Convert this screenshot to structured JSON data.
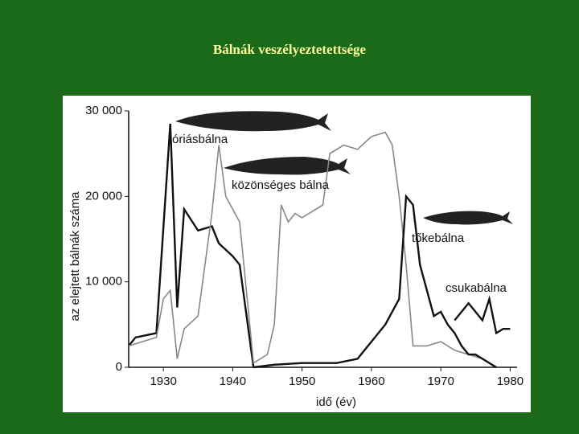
{
  "chart_data": {
    "type": "line",
    "title": "Bálnák veszélyeztetettsége",
    "xlabel": "idő (év)",
    "ylabel": "az elejtett bálnák száma",
    "xlim": [
      1925,
      1981
    ],
    "xticks": [
      1930,
      1940,
      1950,
      1960,
      1970,
      1980
    ],
    "ylim": [
      0,
      30000
    ],
    "yticks": [
      0,
      {
        "value": 10000,
        "label": "10 000"
      },
      {
        "value": 20000,
        "label": "20 000"
      },
      {
        "value": 30000,
        "label": "30 000"
      }
    ],
    "series": [
      {
        "name": "óriásbálna",
        "color": "#111111",
        "x": [
          1925,
          1926,
          1929,
          1931,
          1932,
          1933,
          1935,
          1937,
          1938,
          1940,
          1941,
          1943
        ],
        "values": [
          2500,
          3500,
          4000,
          28500,
          7000,
          18500,
          16000,
          16500,
          14500,
          13000,
          12000,
          0
        ]
      },
      {
        "name": "közönséges bálna",
        "color": "#888888",
        "x": [
          1925,
          1929,
          1930,
          1931,
          1932,
          1933,
          1935,
          1937,
          1938,
          1939,
          1941,
          1943,
          1945,
          1946,
          1947,
          1948,
          1949,
          1950,
          1951,
          1953,
          1954,
          1956,
          1958,
          1960,
          1962,
          1963,
          1964,
          1965,
          1966,
          1968,
          1970,
          1972,
          1974,
          1976
        ],
        "values": [
          2500,
          3500,
          8000,
          9000,
          1000,
          4500,
          6000,
          18000,
          26000,
          20000,
          17000,
          500,
          1500,
          5000,
          19000,
          17000,
          18000,
          17500,
          18000,
          19000,
          25000,
          26000,
          25500,
          27000,
          27500,
          26000,
          20000,
          12000,
          2500,
          2500,
          3000,
          2000,
          1500,
          1000
        ]
      },
      {
        "name": "tőkebálna",
        "color": "#111111",
        "x": [
          1943,
          1946,
          1950,
          1955,
          1958,
          1960,
          1962,
          1964,
          1965,
          1966,
          1967,
          1968,
          1969,
          1970,
          1971,
          1972,
          1973,
          1974,
          1975,
          1976,
          1977,
          1978
        ],
        "values": [
          0,
          300,
          500,
          500,
          1000,
          3000,
          5000,
          8000,
          20000,
          19000,
          12000,
          9000,
          6000,
          6500,
          5000,
          4000,
          2500,
          1500,
          1500,
          1000,
          500,
          0
        ]
      },
      {
        "name": "csukabálna",
        "color": "#111111",
        "x": [
          1972,
          1974,
          1975,
          1976,
          1977,
          1978,
          1979,
          1980
        ],
        "values": [
          5500,
          7500,
          6500,
          5500,
          8000,
          4000,
          4500,
          4500
        ]
      }
    ]
  }
}
